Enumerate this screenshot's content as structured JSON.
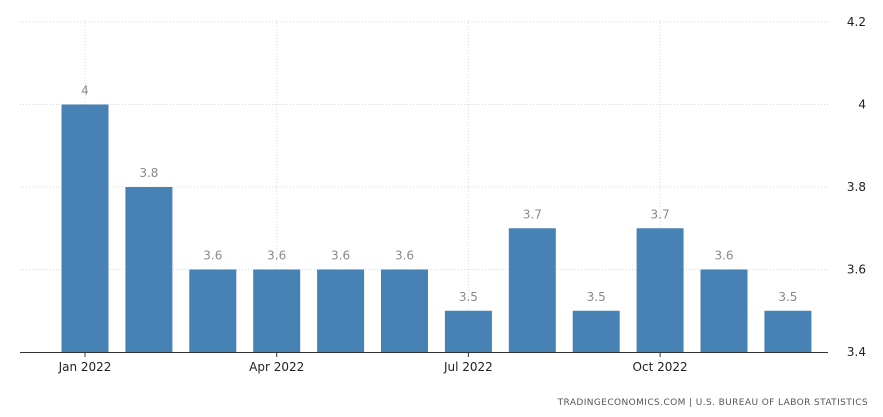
{
  "chart_data": {
    "type": "bar",
    "categories": [
      "Jan 2022",
      "Feb 2022",
      "Mar 2022",
      "Apr 2022",
      "May 2022",
      "Jun 2022",
      "Jul 2022",
      "Aug 2022",
      "Sep 2022",
      "Oct 2022",
      "Nov 2022",
      "Dec 2022"
    ],
    "values": [
      4.0,
      3.8,
      3.6,
      3.6,
      3.6,
      3.6,
      3.5,
      3.7,
      3.5,
      3.7,
      3.6,
      3.5
    ],
    "data_labels": [
      "4",
      "3.8",
      "3.6",
      "3.6",
      "3.6",
      "3.6",
      "3.5",
      "3.7",
      "3.5",
      "3.7",
      "3.6",
      "3.5"
    ],
    "x_tick_labels": [
      "Jan 2022",
      "Apr 2022",
      "Jul 2022",
      "Oct 2022"
    ],
    "x_tick_indices": [
      0,
      3,
      6,
      9
    ],
    "y_ticks": [
      "3.4",
      "3.6",
      "3.8",
      "4",
      "4.2"
    ],
    "ylim": [
      3.4,
      4.2
    ],
    "y_axis_side": "right",
    "grid": true,
    "bar_color": "#4682b4",
    "title": "",
    "xlabel": "",
    "ylabel": ""
  },
  "source": "TRADINGECONOMICS.COM | U.S. BUREAU OF LABOR STATISTICS"
}
